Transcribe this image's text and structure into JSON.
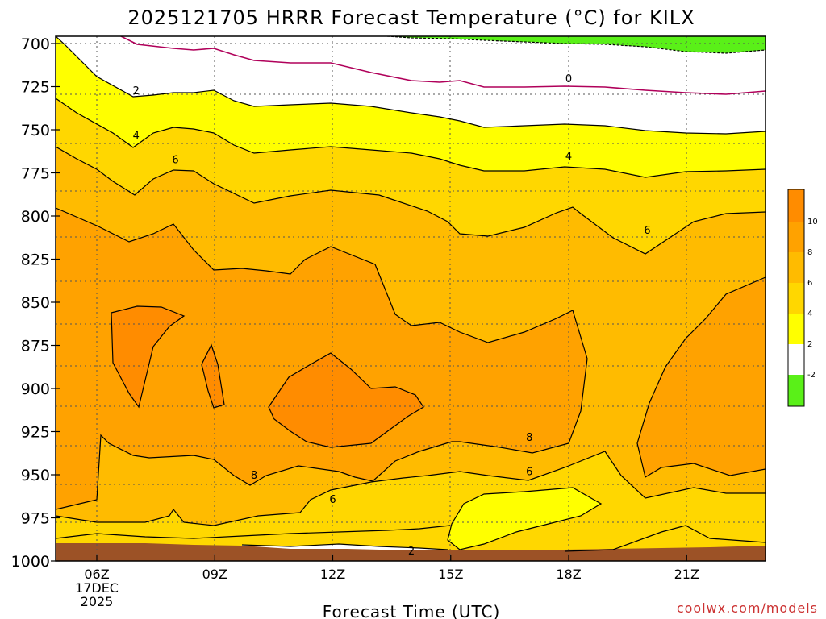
{
  "chart_data": {
    "type": "heatmap",
    "title": "2025121705 HRRR Forecast Temperature (°C) for KILX",
    "xlabel": "Forecast Time (UTC)",
    "ylabel": "",
    "x_ticks": [
      {
        "value": 6,
        "lines": [
          "06Z",
          "17DEC",
          "2025"
        ]
      },
      {
        "value": 9,
        "lines": [
          "09Z"
        ]
      },
      {
        "value": 12,
        "lines": [
          "12Z"
        ]
      },
      {
        "value": 15,
        "lines": [
          "15Z"
        ]
      },
      {
        "value": 18,
        "lines": [
          "18Z"
        ]
      },
      {
        "value": 21,
        "lines": [
          "21Z"
        ]
      }
    ],
    "xlim": [
      5,
      23
    ],
    "y_ticks": [
      700,
      725,
      750,
      775,
      800,
      825,
      850,
      875,
      900,
      925,
      950,
      975,
      1000
    ],
    "ylim": [
      700,
      1000
    ],
    "y_reversed": true,
    "contour_levels": [
      -2,
      0,
      2,
      4,
      6,
      8,
      10
    ],
    "colorbar_labels": [
      "10",
      "8",
      "6",
      "4",
      "2",
      "-2"
    ],
    "colors": {
      "lt_minus2": "#5af018",
      "m2_0": "#ffffff",
      "0_2": "#ffffff",
      "2_4": "#ffff00",
      "4_6": "#ffd700",
      "6_8": "#ffbb00",
      "8_10": "#ffa200",
      "10_12": "#ff8c00",
      "ground": "#9c5226",
      "zero_line": "#b0005a"
    },
    "contour_labels": [
      {
        "text": "2",
        "x": 7.0,
        "y": 727
      },
      {
        "text": "4",
        "x": 7.0,
        "y": 753
      },
      {
        "text": "6",
        "x": 8.0,
        "y": 767
      },
      {
        "text": "0",
        "x": 18.0,
        "y": 720
      },
      {
        "text": "4",
        "x": 18.0,
        "y": 765
      },
      {
        "text": "6",
        "x": 20.0,
        "y": 808
      },
      {
        "text": "8",
        "x": 17.0,
        "y": 928
      },
      {
        "text": "6",
        "x": 17.0,
        "y": 948
      },
      {
        "text": "8",
        "x": 10.0,
        "y": 950
      },
      {
        "text": "6",
        "x": 12.0,
        "y": 964
      },
      {
        "text": "2",
        "x": 14.0,
        "y": 994
      }
    ]
  },
  "credit": "coolwx.com/models"
}
